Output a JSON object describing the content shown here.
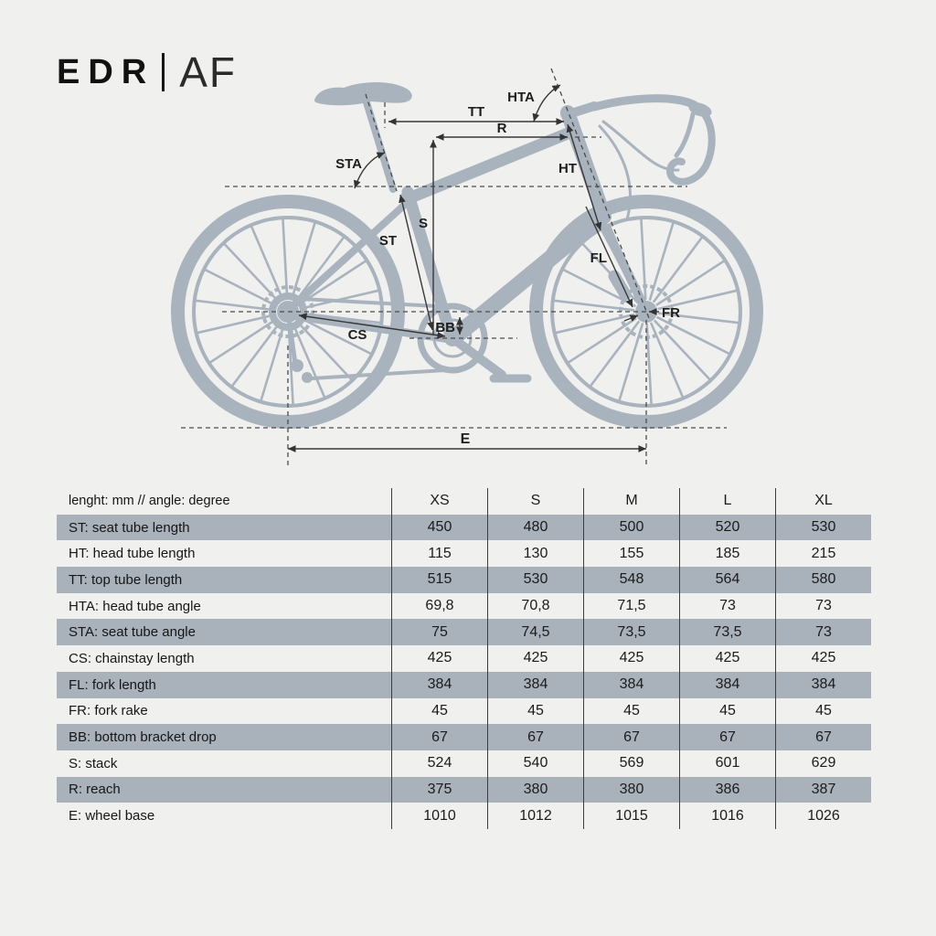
{
  "page": {
    "background": "#f0f0ee"
  },
  "logo": {
    "brand": "EDR",
    "model": "AF"
  },
  "diagram": {
    "bike_color": "#a9b3be",
    "line_color": "#3a3a3a",
    "labels": {
      "hta": "HTA",
      "tt": "TT",
      "r": "R",
      "sta": "STA",
      "ht": "HT",
      "s": "S",
      "st": "ST",
      "fl": "FL",
      "fr": "FR",
      "bb": "BB",
      "cs": "CS",
      "e": "E"
    }
  },
  "table": {
    "unit_header": "lenght: mm // angle: degree",
    "sizes": [
      "XS",
      "S",
      "M",
      "L",
      "XL"
    ],
    "shaded_row_color": "#a9b1bb",
    "rows": [
      {
        "label": "ST: seat tube length",
        "values": [
          "450",
          "480",
          "500",
          "520",
          "530"
        ]
      },
      {
        "label": "HT: head tube length",
        "values": [
          "115",
          "130",
          "155",
          "185",
          "215"
        ]
      },
      {
        "label": "TT: top tube length",
        "values": [
          "515",
          "530",
          "548",
          "564",
          "580"
        ]
      },
      {
        "label": "HTA: head tube angle",
        "values": [
          "69,8",
          "70,8",
          "71,5",
          "73",
          "73"
        ]
      },
      {
        "label": "STA: seat tube angle",
        "values": [
          "75",
          "74,5",
          "73,5",
          "73,5",
          "73"
        ]
      },
      {
        "label": "CS: chainstay length",
        "values": [
          "425",
          "425",
          "425",
          "425",
          "425"
        ]
      },
      {
        "label": "FL: fork length",
        "values": [
          "384",
          "384",
          "384",
          "384",
          "384"
        ]
      },
      {
        "label": "FR: fork rake",
        "values": [
          "45",
          "45",
          "45",
          "45",
          "45"
        ]
      },
      {
        "label": "BB: bottom bracket drop",
        "values": [
          "67",
          "67",
          "67",
          "67",
          "67"
        ]
      },
      {
        "label": "S: stack",
        "values": [
          "524",
          "540",
          "569",
          "601",
          "629"
        ]
      },
      {
        "label": "R: reach",
        "values": [
          "375",
          "380",
          "380",
          "386",
          "387"
        ]
      },
      {
        "label": "E: wheel base",
        "values": [
          "1010",
          "1012",
          "1015",
          "1016",
          "1026"
        ]
      }
    ]
  }
}
